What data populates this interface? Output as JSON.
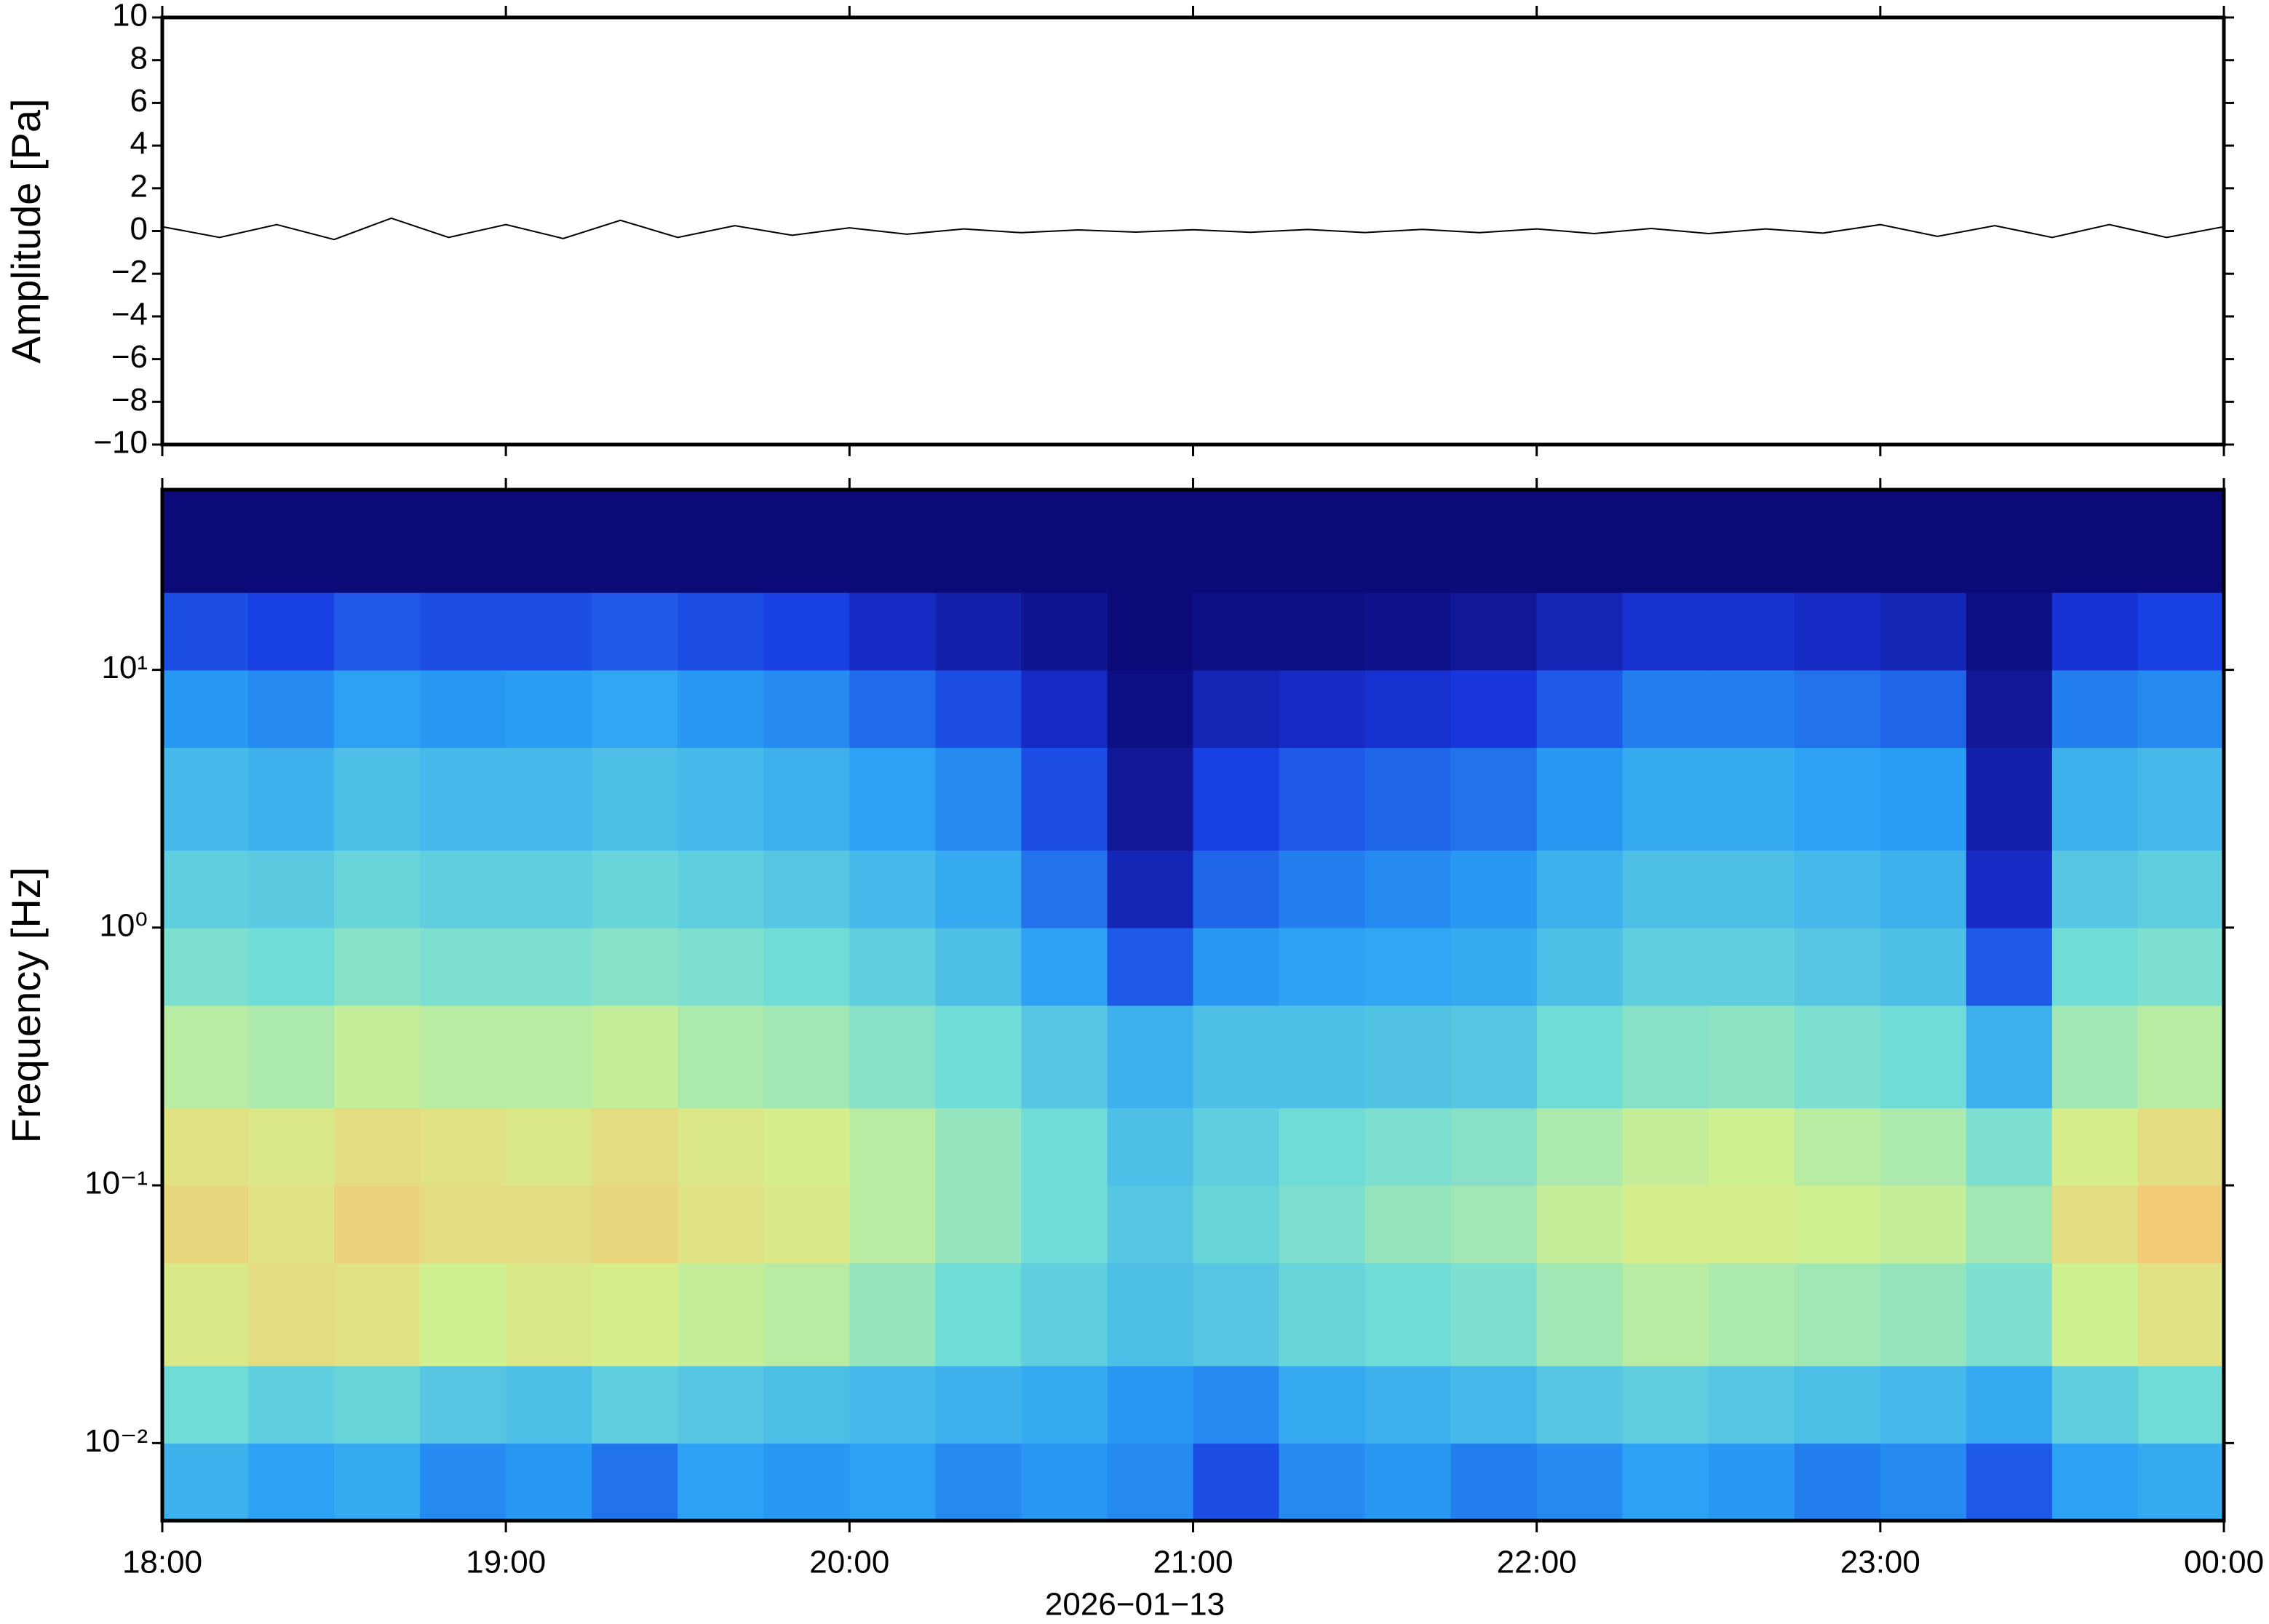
{
  "chart_data": [
    {
      "type": "line",
      "y_label": "Amplitude [Pa]",
      "color": "#000000",
      "xlim": [
        "18:00",
        "00:00"
      ],
      "x": [
        "18:00",
        "18:10",
        "18:20",
        "18:30",
        "18:40",
        "18:50",
        "19:00",
        "19:10",
        "19:20",
        "19:30",
        "19:40",
        "19:50",
        "20:00",
        "20:10",
        "20:20",
        "20:30",
        "20:40",
        "20:50",
        "21:00",
        "21:10",
        "21:20",
        "21:30",
        "21:40",
        "21:50",
        "22:00",
        "22:10",
        "22:20",
        "22:30",
        "22:40",
        "22:50",
        "23:00",
        "23:10",
        "23:20",
        "23:30",
        "23:40",
        "23:50",
        "00:00"
      ],
      "values": [
        0.2,
        -0.3,
        0.3,
        -0.4,
        0.6,
        -0.3,
        0.3,
        -0.35,
        0.5,
        -0.3,
        0.25,
        -0.2,
        0.15,
        -0.15,
        0.1,
        -0.08,
        0.05,
        -0.05,
        0.06,
        -0.06,
        0.07,
        -0.07,
        0.08,
        -0.08,
        0.1,
        -0.12,
        0.12,
        -0.12,
        0.1,
        -0.1,
        0.3,
        -0.25,
        0.25,
        -0.3,
        0.3,
        -0.3,
        0.2
      ],
      "ylim": [
        -10,
        10
      ],
      "yticks": [
        {
          "value": -10,
          "label": "−10"
        },
        {
          "value": -8,
          "label": "−8"
        },
        {
          "value": -6,
          "label": "−6"
        },
        {
          "value": -4,
          "label": "−4"
        },
        {
          "value": -2,
          "label": "−2"
        },
        0,
        2,
        4,
        6,
        8,
        10
      ]
    },
    {
      "type": "heatmap",
      "y_label": "Frequency [Hz]",
      "x_label": "2026−01−13",
      "ylog": true,
      "xlim": [
        "18:00",
        "00:00"
      ],
      "xticks": [
        "18:00",
        "19:00",
        "20:00",
        "21:00",
        "22:00",
        "23:00",
        "00:00"
      ],
      "ylim": [
        0.005,
        50
      ],
      "yticks": [
        {
          "value": 0.01,
          "label": "10⁻²"
        },
        {
          "value": 0.1,
          "label": "10⁻¹"
        },
        {
          "value": 1,
          "label": "10⁰"
        },
        {
          "value": 10,
          "label": "10¹"
        }
      ],
      "colormap": [
        "#0c0a78",
        "#1838e0",
        "#2aa0f5",
        "#70dcd8",
        "#d4f28e",
        "#f8c070",
        "#e8643c"
      ],
      "zlim": [
        0,
        1
      ],
      "x_bins": [
        "18:00",
        "18:15",
        "18:30",
        "18:45",
        "19:00",
        "19:15",
        "19:30",
        "19:45",
        "20:00",
        "20:15",
        "20:30",
        "20:45",
        "21:00",
        "21:15",
        "21:30",
        "21:45",
        "22:00",
        "22:15",
        "22:30",
        "22:45",
        "23:00",
        "23:15",
        "23:30",
        "23:45",
        "00:00"
      ],
      "y_bins": [
        0.005,
        0.01,
        0.02,
        0.05,
        0.1,
        0.2,
        0.5,
        1,
        2,
        5,
        10,
        20,
        50
      ],
      "z": [
        [
          0.38,
          0.34,
          0.36,
          0.3,
          0.32,
          0.26,
          0.34,
          0.32,
          0.34,
          0.3,
          0.32,
          0.3,
          0.2,
          0.3,
          0.32,
          0.28,
          0.3,
          0.34,
          0.32,
          0.28,
          0.3,
          0.22,
          0.34,
          0.36
        ],
        [
          0.5,
          0.46,
          0.48,
          0.44,
          0.42,
          0.46,
          0.44,
          0.42,
          0.4,
          0.38,
          0.36,
          0.32,
          0.3,
          0.36,
          0.38,
          0.4,
          0.44,
          0.46,
          0.44,
          0.42,
          0.4,
          0.36,
          0.46,
          0.5
        ],
        [
          0.7,
          0.74,
          0.72,
          0.66,
          0.7,
          0.68,
          0.64,
          0.62,
          0.56,
          0.5,
          0.46,
          0.42,
          0.44,
          0.48,
          0.5,
          0.52,
          0.58,
          0.62,
          0.6,
          0.58,
          0.56,
          0.52,
          0.66,
          0.72
        ],
        [
          0.76,
          0.72,
          0.78,
          0.74,
          0.74,
          0.76,
          0.72,
          0.7,
          0.62,
          0.56,
          0.5,
          0.44,
          0.48,
          0.52,
          0.56,
          0.58,
          0.64,
          0.68,
          0.68,
          0.66,
          0.64,
          0.58,
          0.74,
          0.8
        ],
        [
          0.72,
          0.7,
          0.74,
          0.72,
          0.7,
          0.74,
          0.7,
          0.68,
          0.62,
          0.56,
          0.5,
          0.42,
          0.46,
          0.5,
          0.52,
          0.54,
          0.6,
          0.64,
          0.66,
          0.62,
          0.6,
          0.52,
          0.68,
          0.74
        ],
        [
          0.62,
          0.6,
          0.64,
          0.62,
          0.62,
          0.64,
          0.6,
          0.58,
          0.54,
          0.5,
          0.44,
          0.38,
          0.42,
          0.42,
          0.43,
          0.44,
          0.5,
          0.54,
          0.55,
          0.52,
          0.5,
          0.38,
          0.58,
          0.62
        ],
        [
          0.52,
          0.5,
          0.54,
          0.52,
          0.52,
          0.54,
          0.52,
          0.5,
          0.46,
          0.42,
          0.34,
          0.22,
          0.32,
          0.34,
          0.35,
          0.36,
          0.42,
          0.46,
          0.46,
          0.44,
          0.42,
          0.22,
          0.5,
          0.52
        ],
        [
          0.46,
          0.45,
          0.48,
          0.46,
          0.46,
          0.48,
          0.46,
          0.44,
          0.4,
          0.36,
          0.26,
          0.1,
          0.24,
          0.28,
          0.3,
          0.32,
          0.38,
          0.42,
          0.42,
          0.4,
          0.38,
          0.12,
          0.44,
          0.46
        ],
        [
          0.4,
          0.38,
          0.42,
          0.4,
          0.4,
          0.42,
          0.4,
          0.38,
          0.34,
          0.3,
          0.2,
          0.05,
          0.18,
          0.22,
          0.24,
          0.26,
          0.32,
          0.36,
          0.36,
          0.34,
          0.33,
          0.08,
          0.38,
          0.4
        ],
        [
          0.32,
          0.3,
          0.34,
          0.32,
          0.33,
          0.35,
          0.32,
          0.3,
          0.25,
          0.2,
          0.12,
          0.02,
          0.1,
          0.12,
          0.14,
          0.16,
          0.22,
          0.28,
          0.28,
          0.26,
          0.24,
          0.05,
          0.28,
          0.3
        ],
        [
          0.2,
          0.18,
          0.22,
          0.2,
          0.2,
          0.22,
          0.2,
          0.18,
          0.12,
          0.08,
          0.04,
          0,
          0.02,
          0.02,
          0.03,
          0.05,
          0.1,
          0.14,
          0.14,
          0.12,
          0.1,
          0.02,
          0.15,
          0.18
        ],
        [
          0,
          0,
          0,
          0,
          0,
          0,
          0,
          0,
          0,
          0,
          0,
          0,
          0,
          0,
          0,
          0,
          0,
          0,
          0,
          0,
          0,
          0,
          0,
          0
        ]
      ]
    }
  ]
}
